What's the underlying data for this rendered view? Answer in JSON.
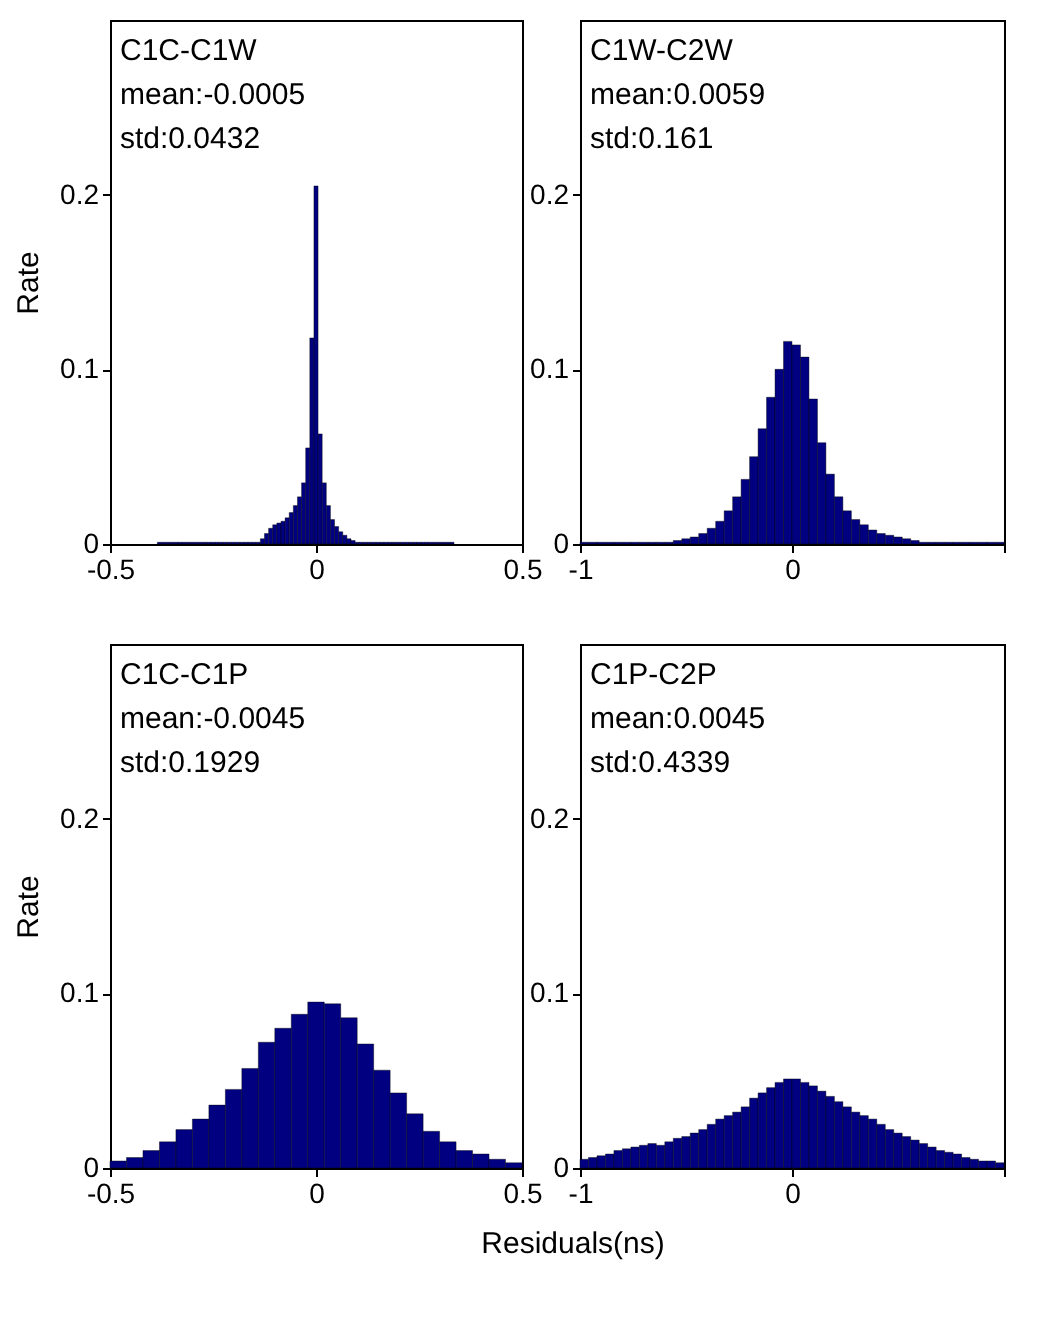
{
  "chart_data": [
    {
      "type": "histogram",
      "ylabel": "Rate",
      "annotations": [
        "C1C-C1W",
        "mean:-0.0005",
        "std:0.0432"
      ],
      "color": "#000080",
      "xlim": [
        -0.5,
        0.5
      ],
      "xticks": [
        -0.5,
        0,
        0.5
      ],
      "ylim": [
        0,
        0.3
      ],
      "yticks": [
        0,
        0.1,
        0.2
      ],
      "bins": [
        -0.385,
        -0.375,
        -0.365,
        -0.355,
        -0.345,
        -0.335,
        -0.325,
        -0.315,
        -0.305,
        -0.295,
        -0.285,
        -0.275,
        -0.265,
        -0.255,
        -0.245,
        -0.235,
        -0.225,
        -0.215,
        -0.205,
        -0.195,
        -0.185,
        -0.175,
        -0.165,
        -0.155,
        -0.145,
        -0.135,
        -0.125,
        -0.115,
        -0.105,
        -0.095,
        -0.085,
        -0.075,
        -0.065,
        -0.055,
        -0.045,
        -0.035,
        -0.025,
        -0.015,
        -0.005,
        0.005,
        0.015,
        0.025,
        0.035,
        0.045,
        0.055,
        0.065,
        0.075,
        0.085,
        0.095,
        0.105,
        0.115,
        0.125,
        0.135,
        0.145,
        0.155,
        0.165,
        0.175,
        0.185,
        0.195,
        0.205,
        0.215,
        0.225,
        0.235,
        0.245,
        0.255,
        0.265,
        0.275,
        0.285,
        0.295,
        0.305,
        0.315,
        0.325,
        0.335
      ],
      "values": [
        0.001,
        0.001,
        0.001,
        0.001,
        0.001,
        0.001,
        0.001,
        0.001,
        0.001,
        0.001,
        0.001,
        0.001,
        0.001,
        0.001,
        0.001,
        0.001,
        0.001,
        0.001,
        0.001,
        0.001,
        0.001,
        0.001,
        0.001,
        0.001,
        0.001,
        0.003,
        0.006,
        0.009,
        0.011,
        0.012,
        0.013,
        0.015,
        0.018,
        0.022,
        0.027,
        0.035,
        0.055,
        0.118,
        0.205,
        0.063,
        0.035,
        0.022,
        0.014,
        0.01,
        0.007,
        0.005,
        0.003,
        0.002,
        0.001,
        0.001,
        0.001,
        0.001,
        0.001,
        0.001,
        0.001,
        0.001,
        0.001,
        0.001,
        0.001,
        0.001,
        0.001,
        0.001,
        0.001,
        0.001,
        0.001,
        0.001,
        0.001,
        0.001,
        0.001,
        0.001,
        0.001,
        0.001
      ]
    },
    {
      "type": "histogram",
      "annotations": [
        "C1W-C2W",
        "mean:0.0059",
        "std:0.161"
      ],
      "color": "#000080",
      "xlim": [
        -1,
        1
      ],
      "xticks": [
        -1,
        0,
        {
          "value": 1,
          "label": null
        }
      ],
      "ylim": [
        0,
        0.3
      ],
      "yticks": [
        0,
        0.1,
        0.2
      ],
      "bins": [
        -1,
        -0.96,
        -0.92,
        -0.88,
        -0.84,
        -0.8,
        -0.76,
        -0.72,
        -0.68,
        -0.64,
        -0.6,
        -0.56,
        -0.52,
        -0.48,
        -0.44,
        -0.4,
        -0.36,
        -0.32,
        -0.28,
        -0.24,
        -0.2,
        -0.16,
        -0.12,
        -0.08,
        -0.04,
        0,
        0.04,
        0.08,
        0.12,
        0.16,
        0.2,
        0.24,
        0.28,
        0.32,
        0.36,
        0.4,
        0.44,
        0.48,
        0.52,
        0.56,
        0.6,
        0.64,
        0.68,
        0.72,
        0.76,
        0.8,
        0.84,
        0.88,
        0.92,
        0.96,
        1
      ],
      "values": [
        0.001,
        0.001,
        0.001,
        0.001,
        0.001,
        0.001,
        0.001,
        0.001,
        0.001,
        0.001,
        0.001,
        0.002,
        0.003,
        0.004,
        0.006,
        0.009,
        0.013,
        0.019,
        0.027,
        0.037,
        0.05,
        0.066,
        0.084,
        0.1,
        0.116,
        0.114,
        0.107,
        0.083,
        0.058,
        0.04,
        0.027,
        0.019,
        0.014,
        0.011,
        0.008,
        0.006,
        0.005,
        0.004,
        0.003,
        0.002,
        0.001,
        0.001,
        0.001,
        0.001,
        0.001,
        0.001,
        0.001,
        0.001,
        0.001,
        0.001
      ]
    },
    {
      "type": "histogram",
      "ylabel": "Rate",
      "xlabel": "Residuals(ns)",
      "annotations": [
        "C1C-C1P",
        "mean:-0.0045",
        "std:0.1929"
      ],
      "color": "#000080",
      "xlim": [
        -0.5,
        0.5
      ],
      "xticks": [
        -0.5,
        0,
        0.5
      ],
      "ylim": [
        0,
        0.3
      ],
      "yticks": [
        0,
        0.1,
        0.2
      ],
      "bins": [
        -0.5,
        -0.46,
        -0.42,
        -0.38,
        -0.34,
        -0.3,
        -0.26,
        -0.22,
        -0.18,
        -0.14,
        -0.1,
        -0.06,
        -0.02,
        0.02,
        0.06,
        0.1,
        0.14,
        0.18,
        0.22,
        0.26,
        0.3,
        0.34,
        0.38,
        0.42,
        0.46,
        0.5
      ],
      "values": [
        0.004,
        0.006,
        0.01,
        0.015,
        0.022,
        0.028,
        0.036,
        0.045,
        0.057,
        0.072,
        0.08,
        0.088,
        0.095,
        0.094,
        0.086,
        0.071,
        0.056,
        0.043,
        0.031,
        0.021,
        0.015,
        0.01,
        0.008,
        0.005,
        0.003
      ]
    },
    {
      "type": "histogram",
      "annotations": [
        "C1P-C2P",
        "mean:0.0045",
        "std:0.4339"
      ],
      "color": "#000080",
      "xlim": [
        -1,
        1
      ],
      "xticks": [
        -1,
        0,
        {
          "value": 1,
          "label": null
        }
      ],
      "ylim": [
        0,
        0.3
      ],
      "yticks": [
        0,
        0.1,
        0.2
      ],
      "bins": [
        -1,
        -0.96,
        -0.92,
        -0.88,
        -0.84,
        -0.8,
        -0.76,
        -0.72,
        -0.68,
        -0.64,
        -0.6,
        -0.56,
        -0.52,
        -0.48,
        -0.44,
        -0.4,
        -0.36,
        -0.32,
        -0.28,
        -0.24,
        -0.2,
        -0.16,
        -0.12,
        -0.08,
        -0.04,
        0,
        0.04,
        0.08,
        0.12,
        0.16,
        0.2,
        0.24,
        0.28,
        0.32,
        0.36,
        0.4,
        0.44,
        0.48,
        0.52,
        0.56,
        0.6,
        0.64,
        0.68,
        0.72,
        0.76,
        0.8,
        0.84,
        0.88,
        0.92,
        0.96,
        1
      ],
      "values": [
        0.005,
        0.006,
        0.007,
        0.008,
        0.01,
        0.011,
        0.012,
        0.013,
        0.014,
        0.013,
        0.015,
        0.017,
        0.018,
        0.02,
        0.022,
        0.025,
        0.028,
        0.03,
        0.032,
        0.035,
        0.04,
        0.043,
        0.046,
        0.049,
        0.051,
        0.051,
        0.049,
        0.047,
        0.044,
        0.041,
        0.038,
        0.035,
        0.032,
        0.03,
        0.028,
        0.025,
        0.022,
        0.02,
        0.018,
        0.016,
        0.014,
        0.012,
        0.01,
        0.009,
        0.008,
        0.006,
        0.005,
        0.004,
        0.004,
        0.003
      ]
    }
  ]
}
